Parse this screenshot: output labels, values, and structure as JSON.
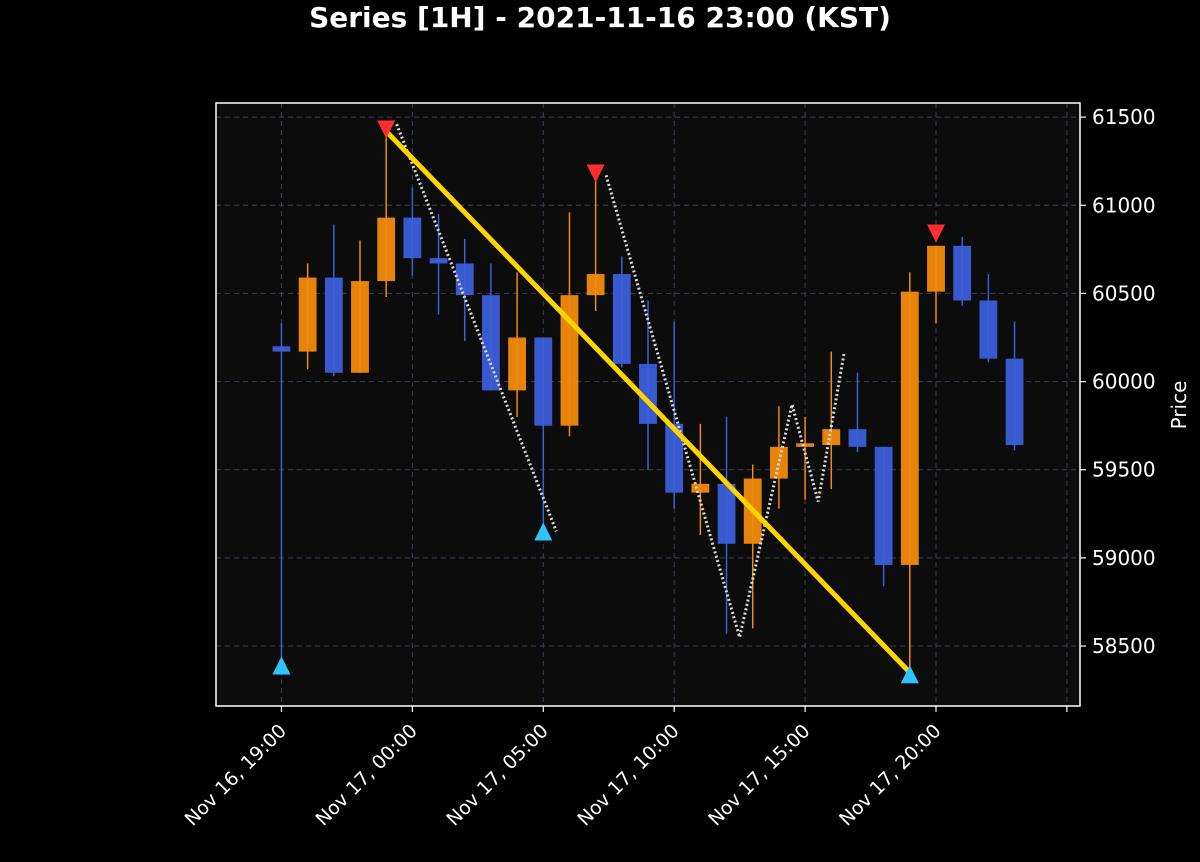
{
  "colors": {
    "background": "#000000",
    "plot_bg": "#0c0c0c",
    "axes": "#ffffff",
    "grid": "#3a3f55",
    "bull": "#f28a0c",
    "bear": "#3b5fd9",
    "peak_marker": "#ff2d2d",
    "trough_marker": "#2ec4ff",
    "trend_line": "#ffd500",
    "zigzag": "#d9d9d9",
    "text": "#ffffff"
  },
  "chart_data": {
    "type": "candlestick",
    "title": "Series [1H] - 2021-11-16 23:00 (KST)",
    "ylabel": "Price",
    "ylim": [
      58160,
      61580
    ],
    "xlim": [
      -2.5,
      30.5
    ],
    "yticks": [
      58500,
      59000,
      59500,
      60000,
      60500,
      61000,
      61500
    ],
    "xticks": [
      {
        "x": 0,
        "label": "Nov 16, 19:00"
      },
      {
        "x": 5,
        "label": "Nov 17, 00:00"
      },
      {
        "x": 10,
        "label": "Nov 17, 05:00"
      },
      {
        "x": 15,
        "label": "Nov 17, 10:00"
      },
      {
        "x": 20,
        "label": "Nov 17, 15:00"
      },
      {
        "x": 25,
        "label": "Nov 17, 20:00"
      }
    ],
    "x_minor_ticks": [
      30
    ],
    "grid": true,
    "candles": [
      {
        "x": 0,
        "open": 60200,
        "high": 60330,
        "low": 58400,
        "close": 60170
      },
      {
        "x": 1,
        "open": 60170,
        "high": 60670,
        "low": 60070,
        "close": 60590
      },
      {
        "x": 2,
        "open": 60590,
        "high": 60890,
        "low": 60030,
        "close": 60050
      },
      {
        "x": 3,
        "open": 60050,
        "high": 60800,
        "low": 60050,
        "close": 60570
      },
      {
        "x": 4,
        "open": 60570,
        "high": 61430,
        "low": 60480,
        "close": 60930
      },
      {
        "x": 5,
        "open": 60930,
        "high": 61100,
        "low": 60600,
        "close": 60700
      },
      {
        "x": 6,
        "open": 60700,
        "high": 60950,
        "low": 60380,
        "close": 60670
      },
      {
        "x": 7,
        "open": 60670,
        "high": 60810,
        "low": 60230,
        "close": 60490
      },
      {
        "x": 8,
        "open": 60490,
        "high": 60670,
        "low": 59950,
        "close": 59950
      },
      {
        "x": 9,
        "open": 59950,
        "high": 60620,
        "low": 59800,
        "close": 60250
      },
      {
        "x": 10,
        "open": 60250,
        "high": 60250,
        "low": 59160,
        "close": 59750
      },
      {
        "x": 11,
        "open": 59750,
        "high": 60960,
        "low": 59690,
        "close": 60490
      },
      {
        "x": 12,
        "open": 60490,
        "high": 61180,
        "low": 60400,
        "close": 60610
      },
      {
        "x": 13,
        "open": 60610,
        "high": 60710,
        "low": 60080,
        "close": 60100
      },
      {
        "x": 14,
        "open": 60100,
        "high": 60460,
        "low": 59500,
        "close": 59760
      },
      {
        "x": 15,
        "open": 59760,
        "high": 60340,
        "low": 59280,
        "close": 59370
      },
      {
        "x": 16,
        "open": 59370,
        "high": 59760,
        "low": 59130,
        "close": 59420
      },
      {
        "x": 17,
        "open": 59420,
        "high": 59800,
        "low": 58570,
        "close": 59080
      },
      {
        "x": 18,
        "open": 59080,
        "high": 59530,
        "low": 58600,
        "close": 59450
      },
      {
        "x": 19,
        "open": 59450,
        "high": 59860,
        "low": 59280,
        "close": 59630
      },
      {
        "x": 20,
        "open": 59630,
        "high": 59800,
        "low": 59330,
        "close": 59650
      },
      {
        "x": 21,
        "open": 59640,
        "high": 60170,
        "low": 59390,
        "close": 59730
      },
      {
        "x": 22,
        "open": 59730,
        "high": 60050,
        "low": 59600,
        "close": 59630
      },
      {
        "x": 23,
        "open": 59630,
        "high": 59630,
        "low": 58840,
        "close": 58960
      },
      {
        "x": 24,
        "open": 58960,
        "high": 60620,
        "low": 58350,
        "close": 60510
      },
      {
        "x": 25,
        "open": 60510,
        "high": 60770,
        "low": 60330,
        "close": 60770
      },
      {
        "x": 26,
        "open": 60770,
        "high": 60820,
        "low": 60430,
        "close": 60460
      },
      {
        "x": 27,
        "open": 60460,
        "high": 60610,
        "low": 60110,
        "close": 60130
      },
      {
        "x": 28,
        "open": 60130,
        "high": 60340,
        "low": 59610,
        "close": 59640
      }
    ],
    "peak_markers": [
      {
        "x": 4,
        "y": 61430
      },
      {
        "x": 12,
        "y": 61180
      },
      {
        "x": 25,
        "y": 60840
      }
    ],
    "trough_markers": [
      {
        "x": 0,
        "y": 58390
      },
      {
        "x": 10,
        "y": 59150
      },
      {
        "x": 24,
        "y": 58340
      }
    ],
    "trend_line": [
      {
        "x": 4,
        "y": 61420
      },
      {
        "x": 24,
        "y": 58350
      }
    ],
    "zigzag_segments": [
      [
        {
          "x": 4.4,
          "y": 61460
        },
        {
          "x": 10.5,
          "y": 59150
        }
      ],
      [
        {
          "x": 12.4,
          "y": 61170
        },
        {
          "x": 17.5,
          "y": 58550
        },
        {
          "x": 19.5,
          "y": 59870
        },
        {
          "x": 20.5,
          "y": 59320
        },
        {
          "x": 21.5,
          "y": 60170
        }
      ]
    ]
  }
}
